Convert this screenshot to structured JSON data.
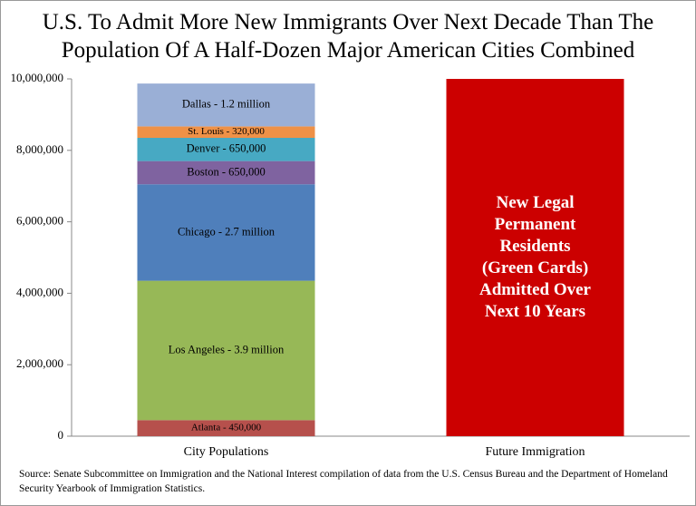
{
  "chart_data": {
    "type": "stacked_bar",
    "title": "U.S. To Admit More New Immigrants Over Next Decade Than The Population Of A Half-Dozen Major American Cities Combined",
    "source": "Source: Senate Subcommittee on Immigration and the National Interest compilation of data from the U.S. Census Bureau and the Department of Homeland Security Yearbook of Immigration Statistics.",
    "categories": [
      "City Populations",
      "Future Immigration"
    ],
    "series": [
      {
        "color": "#b6504c",
        "values": [
          450000,
          null
        ],
        "value_labels": [
          "Atlanta - 450,000",
          null
        ]
      },
      {
        "color": "#97b857",
        "values": [
          3900000,
          null
        ],
        "value_labels": [
          "Los Angeles - 3.9 million",
          null
        ]
      },
      {
        "color": "#4f7fbb",
        "values": [
          2700000,
          null
        ],
        "value_labels": [
          "Chicago - 2.7 million",
          null
        ]
      },
      {
        "color": "#7f63a0",
        "values": [
          650000,
          null
        ],
        "value_labels": [
          "Boston - 650,000",
          null
        ]
      },
      {
        "color": "#47a9c3",
        "values": [
          650000,
          null
        ],
        "value_labels": [
          "Denver - 650,000",
          null
        ]
      },
      {
        "color": "#ef9147",
        "values": [
          320000,
          null
        ],
        "value_labels": [
          "St. Louis - 320,000",
          null
        ]
      },
      {
        "color": "#9aafd6",
        "values": [
          1200000,
          null
        ],
        "value_labels": [
          "Dallas - 1.2 million",
          null
        ]
      },
      {
        "name": "New Legal Permanent Residents (Green Cards) Admitted Over Next 10 Years",
        "color": "#cc0000",
        "values": [
          null,
          10000000
        ]
      }
    ],
    "ylim": [
      0,
      10000000
    ],
    "yticks": [
      0,
      {
        "value": 2000000,
        "label": "2,000,000"
      },
      {
        "value": 4000000,
        "label": "4,000,000"
      },
      {
        "value": 6000000,
        "label": "6,000,000"
      },
      {
        "value": 8000000,
        "label": "8,000,000"
      },
      {
        "value": 10000000,
        "label": "10,000,000"
      }
    ]
  }
}
